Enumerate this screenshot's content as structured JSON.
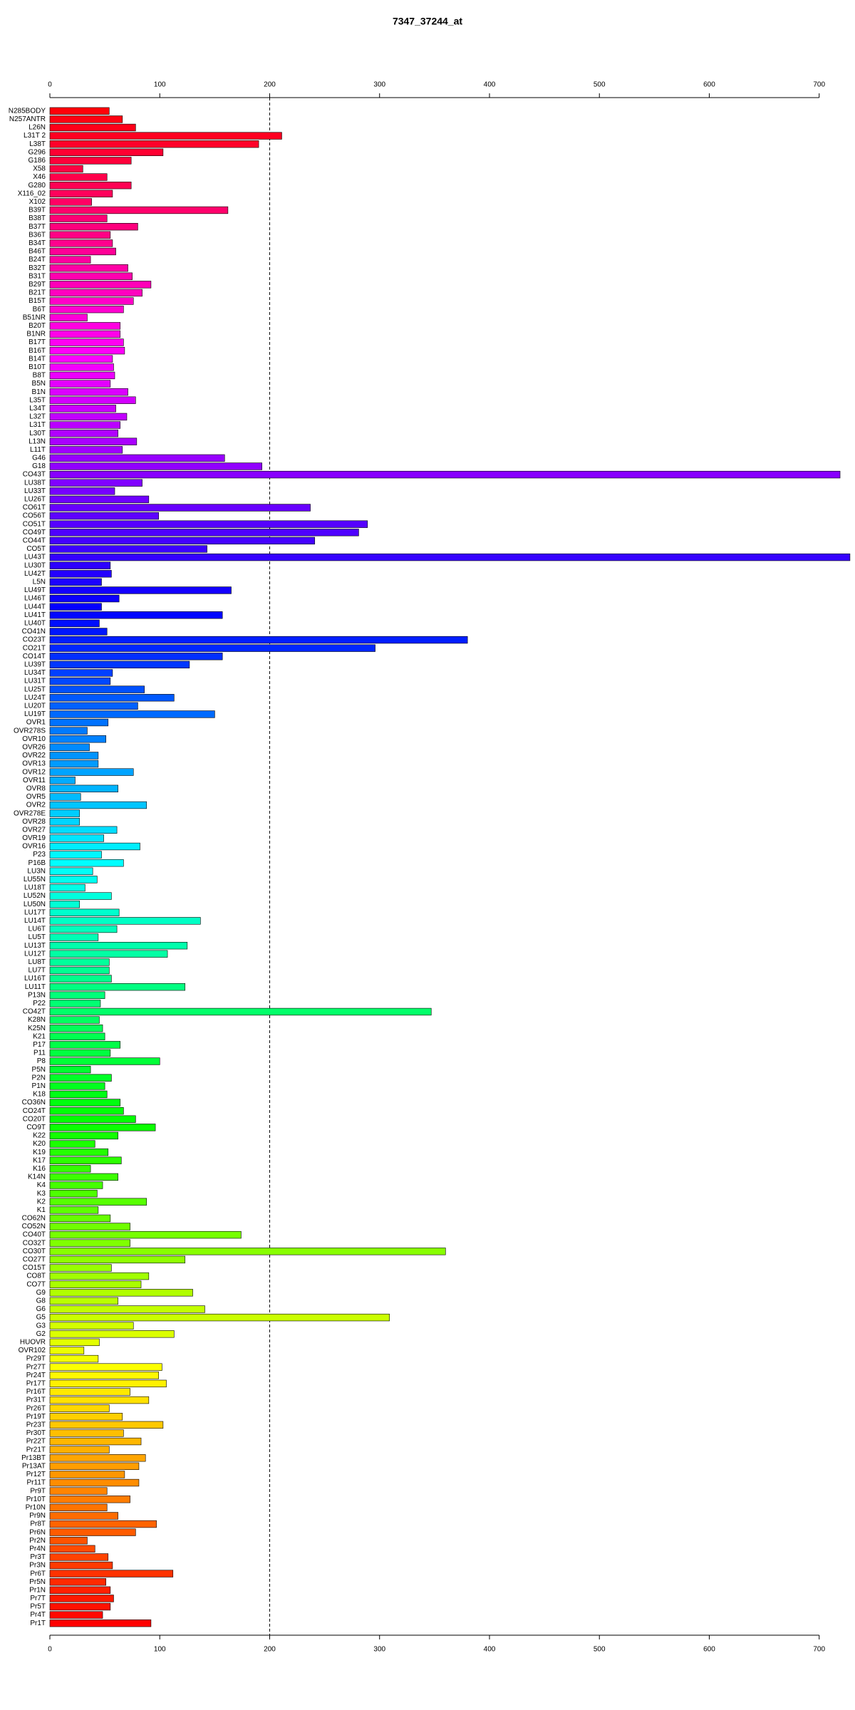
{
  "chart_data": {
    "type": "barh",
    "title": "7347_37244_at",
    "categories": [
      "N285BODY",
      "N257ANTR",
      "L26N",
      "L31T 2",
      "L38T",
      "G296",
      "G186",
      "X58",
      "X46",
      "G280",
      "X116_02",
      "X102",
      "B39T",
      "B38T",
      "B37T",
      "B36T",
      "B34T",
      "B46T",
      "B24T",
      "B32T",
      "B31T",
      "B29T",
      "B21T",
      "B15T",
      "B6T",
      "B51NR",
      "B20T",
      "B1NR",
      "B17T",
      "B16T",
      "B14T",
      "B10T",
      "B8T",
      "B5N",
      "B1N",
      "L35T",
      "L34T",
      "L32T",
      "L31T",
      "L30T",
      "L13N",
      "L11T",
      "G46",
      "G18",
      "CO43T",
      "LU38T",
      "LU33T",
      "LU26T",
      "CO61T",
      "CO56T",
      "CO51T",
      "CO49T",
      "CO44T",
      "CO5T",
      "LU43T",
      "LU30T",
      "LU42T",
      "L5N",
      "LU49T",
      "LU46T",
      "LU44T",
      "LU41T",
      "LU40T",
      "CO41N",
      "CO23T",
      "CO21T",
      "CO14T",
      "LU39T",
      "LU34T",
      "LU31T",
      "LU25T",
      "LU24T",
      "LU20T",
      "LU19T",
      "OVR1",
      "OVR278S",
      "OVR10",
      "OVR26",
      "OVR22",
      "OVR13",
      "OVR12",
      "OVR11",
      "OVR8",
      "OVR5",
      "OVR2",
      "OVR278E",
      "OVR28",
      "OVR27",
      "OVR19",
      "OVR16",
      "P23",
      "P16B",
      "LU3N",
      "LU55N",
      "LU18T",
      "LU52N",
      "LU50N",
      "LU17T",
      "LU14T",
      "LU6T",
      "LU5T",
      "LU13T",
      "LU12T",
      "LU8T",
      "LU7T",
      "LU16T",
      "LU11T",
      "P13N",
      "P22",
      "CO42T",
      "K28N",
      "K25N",
      "K21",
      "P17",
      "P11",
      "P8",
      "P5N",
      "P2N",
      "P1N",
      "K18",
      "CO36N",
      "CO24T",
      "CO20T",
      "CO9T",
      "K22",
      "K20",
      "K19",
      "K17",
      "K16",
      "K14N",
      "K4",
      "K3",
      "K2",
      "K1",
      "CO62N",
      "CO52N",
      "CO40T",
      "CO32T",
      "CO30T",
      "CO27T",
      "CO15T",
      "CO8T",
      "CO7T",
      "G9",
      "G8",
      "G6",
      "G5",
      "G3",
      "G2",
      "HUOVR",
      "OVR102",
      "Pr29T",
      "Pr27T",
      "Pr24T",
      "Pr17T",
      "Pr16T",
      "Pr31T",
      "Pr26T",
      "Pr19T",
      "Pr23T",
      "Pr30T",
      "Pr22T",
      "Pr21T",
      "Pr13BT",
      "Pr13AT",
      "Pr12T",
      "Pr11T",
      "Pr9T",
      "Pr10T",
      "Pr10N",
      "Pr9N",
      "Pr8T",
      "Pr6N",
      "Pr2N",
      "Pr4N",
      "Pr3T",
      "Pr3N",
      "Pr6T",
      "Pr5N",
      "Pr1N",
      "Pr7T",
      "Pr5T",
      "Pr4T",
      "Pr1T"
    ],
    "values": [
      54,
      66,
      78,
      211,
      190,
      103,
      74,
      30,
      52,
      74,
      57,
      38,
      162,
      52,
      80,
      55,
      57,
      60,
      37,
      71,
      75,
      92,
      84,
      76,
      67,
      34,
      64,
      64,
      67,
      68,
      57,
      58,
      59,
      55,
      71,
      78,
      60,
      70,
      64,
      62,
      79,
      66,
      159,
      193,
      719,
      84,
      59,
      90,
      237,
      99,
      289,
      281,
      241,
      143,
      728,
      55,
      56,
      47,
      165,
      63,
      47,
      157,
      45,
      52,
      380,
      296,
      157,
      127,
      57,
      55,
      86,
      113,
      80,
      150,
      53,
      34,
      51,
      36,
      44,
      44,
      76,
      23,
      62,
      28,
      88,
      27,
      27,
      61,
      49,
      82,
      47,
      67,
      39,
      43,
      32,
      56,
      27,
      63,
      137,
      61,
      44,
      125,
      107,
      54,
      54,
      56,
      123,
      50,
      46,
      347,
      45,
      48,
      50,
      64,
      55,
      100,
      37,
      56,
      50,
      52,
      64,
      67,
      78,
      96,
      62,
      41,
      53,
      65,
      37,
      62,
      48,
      43,
      88,
      44,
      55,
      73,
      174,
      73,
      360,
      123,
      56,
      90,
      83,
      130,
      62,
      141,
      309,
      76,
      113,
      45,
      31,
      44,
      102,
      99,
      106,
      73,
      90,
      54,
      66,
      103,
      67,
      83,
      54,
      87,
      81,
      68,
      81,
      52,
      73,
      52,
      62,
      97,
      78,
      34,
      41,
      53,
      57,
      112,
      51,
      55,
      58,
      55,
      48,
      92
    ],
    "color_scheme": "rainbow",
    "xlim": [
      0,
      730
    ],
    "xticks": [
      0,
      100,
      200,
      300,
      400,
      500,
      600,
      700
    ],
    "reference_line": 200
  }
}
